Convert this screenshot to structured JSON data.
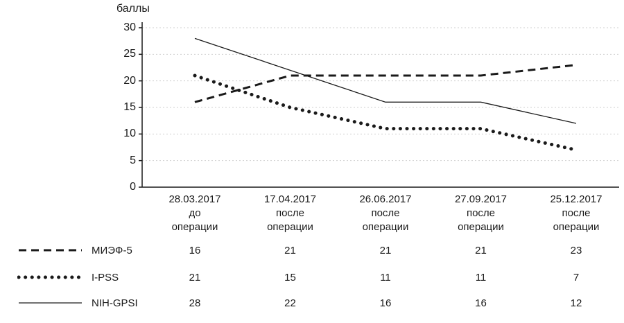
{
  "chart_data": {
    "type": "line",
    "title": "",
    "ylabel": "баллы",
    "xlabel": "",
    "ylim": [
      0,
      30
    ],
    "yticks": [
      0,
      5,
      10,
      15,
      20,
      25,
      30
    ],
    "grid": "light dotted horizontal",
    "legend_position": "bottom-left",
    "categories": [
      {
        "date": "28.03.2017",
        "line2": "до",
        "line3": "операции"
      },
      {
        "date": "17.04.2017",
        "line2": "после",
        "line3": "операции"
      },
      {
        "date": "26.06.2017",
        "line2": "после",
        "line3": "операции"
      },
      {
        "date": "27.09.2017",
        "line2": "после",
        "line3": "операции"
      },
      {
        "date": "25.12.2017",
        "line2": "после",
        "line3": "операции"
      }
    ],
    "series": [
      {
        "name": "МИЭФ-5",
        "style": "dashed",
        "values": [
          16,
          21,
          21,
          21,
          23
        ]
      },
      {
        "name": "I-PSS",
        "style": "dotted",
        "values": [
          21,
          15,
          11,
          11,
          7
        ]
      },
      {
        "name": "NIH-GPSI",
        "style": "solid",
        "values": [
          28,
          22,
          16,
          16,
          12
        ]
      }
    ]
  },
  "colors": {
    "line": "#1a1a1a",
    "axis": "#1a1a1a",
    "grid": "#cfcfcf"
  }
}
